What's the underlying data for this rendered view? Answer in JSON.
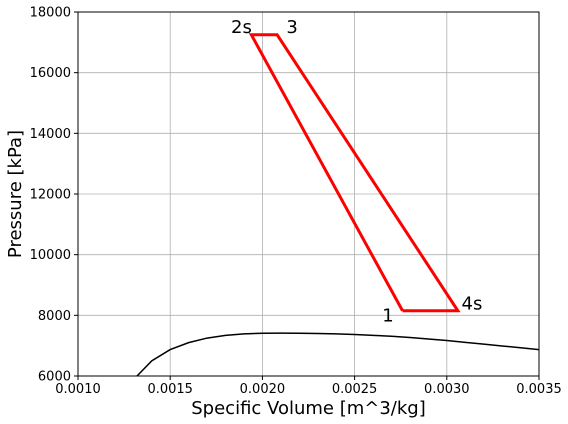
{
  "chart_data": {
    "type": "line",
    "title": "",
    "xlabel": "Specific Volume [m^3/kg]",
    "ylabel": "Pressure [kPa]",
    "xlim": [
      0.001,
      0.0035
    ],
    "ylim": [
      6000,
      18000
    ],
    "grid": true,
    "xticks": [
      0.001,
      0.0015,
      0.002,
      0.0025,
      0.003,
      0.0035
    ],
    "xtick_labels": [
      "0.0010",
      "0.0015",
      "0.0020",
      "0.0025",
      "0.0030",
      "0.0035"
    ],
    "yticks": [
      6000,
      8000,
      10000,
      12000,
      14000,
      16000,
      18000
    ],
    "ytick_labels": [
      "6000",
      "8000",
      "10000",
      "12000",
      "14000",
      "16000",
      "18000"
    ],
    "series": [
      {
        "name": "saturation-curve",
        "color": "#000000",
        "x": [
          0.00132,
          0.0014,
          0.0015,
          0.0016,
          0.0017,
          0.0018,
          0.0019,
          0.002,
          0.0021,
          0.0022,
          0.0023,
          0.0024,
          0.0025,
          0.0026,
          0.0027,
          0.0028,
          0.0029,
          0.003,
          0.0031,
          0.0032,
          0.0033,
          0.0034,
          0.0035
        ],
        "y": [
          6000,
          6500,
          6870,
          7100,
          7250,
          7340,
          7390,
          7410,
          7415,
          7410,
          7400,
          7390,
          7370,
          7340,
          7310,
          7270,
          7220,
          7170,
          7110,
          7050,
          6990,
          6930,
          6870
        ]
      },
      {
        "name": "cycle",
        "color": "#ff0000",
        "x": [
          0.00276,
          0.00194,
          0.00208,
          0.00306,
          0.00276
        ],
        "y": [
          8150,
          17250,
          17250,
          8150,
          8150
        ]
      }
    ],
    "annotations": [
      {
        "text": "1",
        "x": 0.00265,
        "y": 7800
      },
      {
        "text": "2s",
        "x": 0.00183,
        "y": 17300
      },
      {
        "text": "3",
        "x": 0.00213,
        "y": 17300
      },
      {
        "text": "4s",
        "x": 0.00308,
        "y": 8200
      }
    ]
  }
}
